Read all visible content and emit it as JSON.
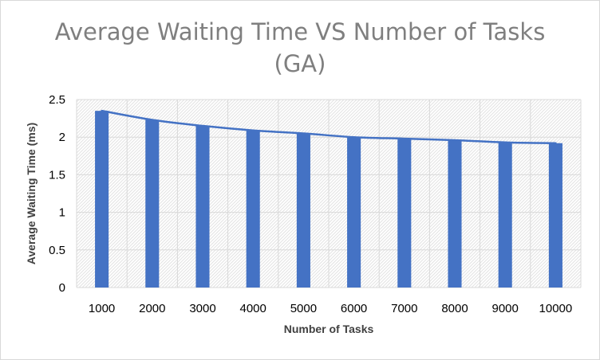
{
  "chart_data": {
    "type": "bar",
    "title": "Average Waiting Time VS Number of Tasks\n(GA)",
    "xlabel": "Number of Tasks",
    "ylabel": "Average Waiting Time (ms)",
    "categories": [
      "1000",
      "2000",
      "3000",
      "4000",
      "5000",
      "6000",
      "7000",
      "8000",
      "9000",
      "10000"
    ],
    "series": [
      {
        "values": [
          2.35,
          2.23,
          2.15,
          2.09,
          2.05,
          2.0,
          1.98,
          1.96,
          1.93,
          1.92
        ]
      }
    ],
    "trendline": true,
    "ylim": [
      0,
      2.5
    ],
    "yticks": [
      "0",
      "0.5",
      "1",
      "1.5",
      "2",
      "2.5"
    ],
    "grid": true,
    "legend": "none",
    "colors": {
      "bar": "#4472c4",
      "line": "#4472c4",
      "grid": "#d9d9d9",
      "plot_hatch": "#e3e3e3"
    }
  }
}
